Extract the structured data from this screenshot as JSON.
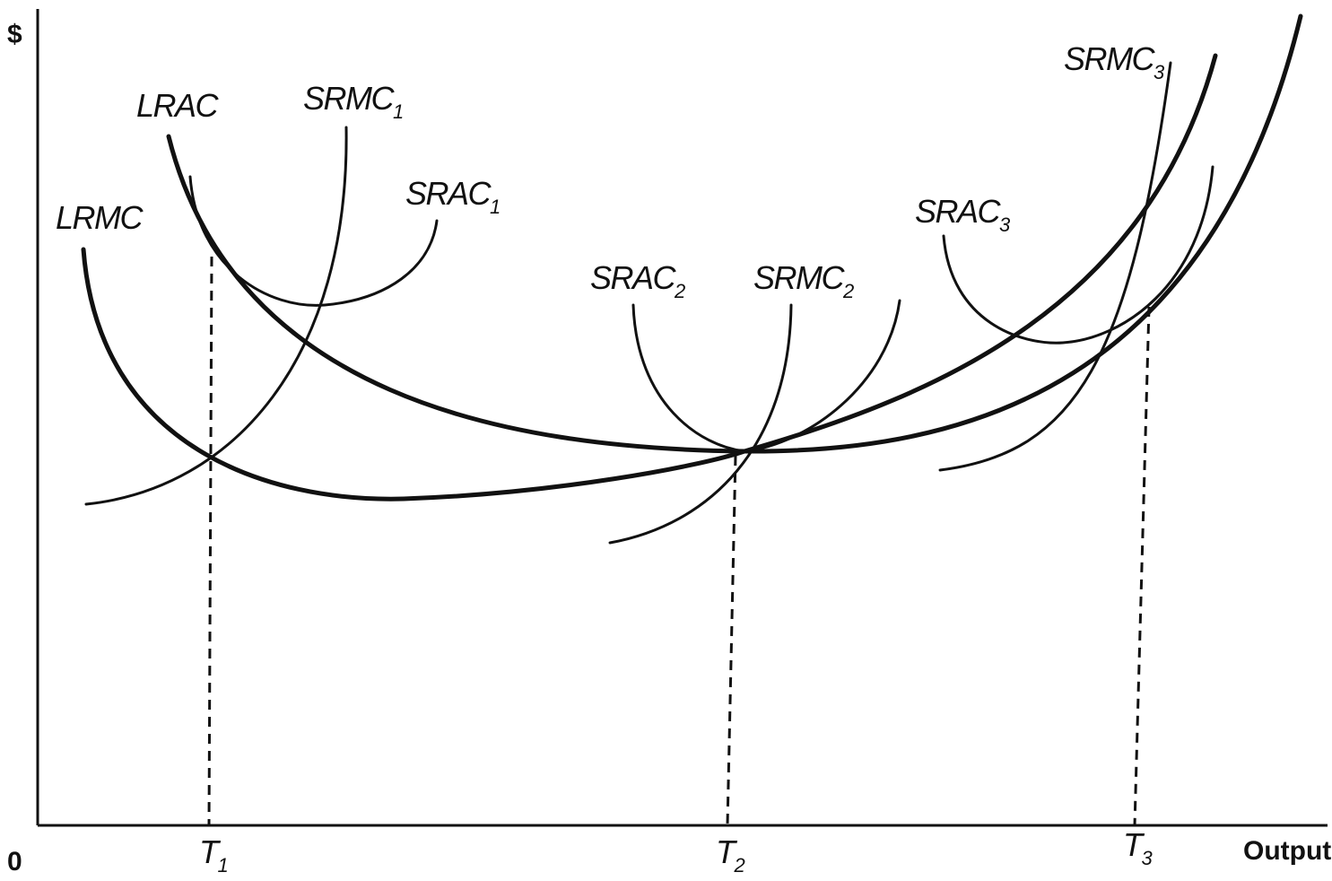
{
  "axes": {
    "y_label": "$",
    "x_label": "Output",
    "origin_label": "0"
  },
  "curves": {
    "lrac": "LRAC",
    "lrmc": "LRMC",
    "srmc1": {
      "base": "SRMC",
      "sub": "1"
    },
    "srac1": {
      "base": "SRAC",
      "sub": "1"
    },
    "srac2": {
      "base": "SRAC",
      "sub": "2"
    },
    "srmc2": {
      "base": "SRMC",
      "sub": "2"
    },
    "srac3": {
      "base": "SRAC",
      "sub": "3"
    },
    "srmc3": {
      "base": "SRMC",
      "sub": "3"
    }
  },
  "ticks": {
    "t1": {
      "base": "T",
      "sub": "1"
    },
    "t2": {
      "base": "T",
      "sub": "2"
    },
    "t3": {
      "base": "T",
      "sub": "3"
    }
  }
}
